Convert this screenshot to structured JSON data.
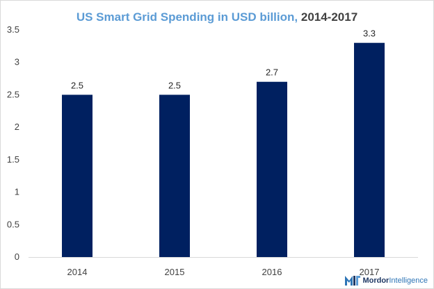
{
  "chart_data": {
    "type": "bar",
    "title": "US Smart Grid Spending in USD billion,",
    "subtitle": "2014-2017",
    "categories": [
      "2014",
      "2015",
      "2016",
      "2017"
    ],
    "values": [
      2.5,
      2.5,
      2.7,
      3.3
    ],
    "data_labels": [
      "2.5",
      "2.5",
      "2.7",
      "3.3"
    ],
    "y_ticks": [
      "0",
      "0.5",
      "1",
      "1.5",
      "2",
      "2.5",
      "3",
      "3.5"
    ],
    "y_tick_values": [
      0,
      0.5,
      1,
      1.5,
      2,
      2.5,
      3,
      3.5
    ],
    "ylim": [
      0,
      3.5
    ],
    "xlabel": "",
    "ylabel": "",
    "grid": false,
    "legend": "none",
    "bar_color": "#002060"
  },
  "brand": {
    "name_a": "Mordor",
    "name_b": "Intelligence",
    "icon": "mordor-intelligence-logo-icon"
  }
}
